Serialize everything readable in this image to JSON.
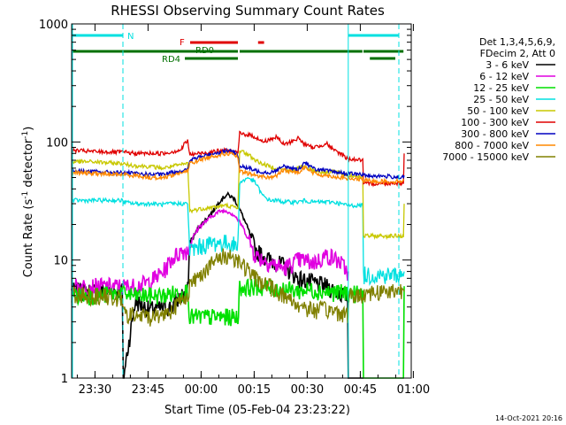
{
  "chart_data": {
    "type": "line",
    "title": "RHESSI Observing Summary Count Rates",
    "xlabel": "Start Time (05-Feb-04 23:23:22)",
    "ylabel_main": "Count Rate (s",
    "ylabel_sup1": "-1",
    "ylabel_mid": " detector",
    "ylabel_sup2": "-1",
    "ylabel_end": ")",
    "yscale": "log",
    "ylim": [
      1,
      1000
    ],
    "xlim": [
      0,
      96
    ],
    "x_units": "minutes after 23:23:22",
    "x_ticks": [
      {
        "t": 6.6,
        "label": "23:30"
      },
      {
        "t": 21.6,
        "label": "23:45"
      },
      {
        "t": 36.6,
        "label": "00:00"
      },
      {
        "t": 51.6,
        "label": "00:15"
      },
      {
        "t": 66.6,
        "label": "00:30"
      },
      {
        "t": 81.6,
        "label": "00:45"
      },
      {
        "t": 96.6,
        "label": "01:00"
      }
    ],
    "y_ticks": [
      {
        "v": 1,
        "label": "1"
      },
      {
        "v": 10,
        "label": "10"
      },
      {
        "v": 100,
        "label": "100"
      },
      {
        "v": 1000,
        "label": "1000"
      }
    ],
    "legend_header": [
      "Det 1,3,4,5,6,9,",
      "FDecim 2, Att 0"
    ],
    "timestamp": "14-Oct-2021 20:16",
    "bars": [
      {
        "label": "N",
        "color": "#00e0e0",
        "y": 40,
        "segments": [
          [
            0,
            14.5
          ],
          [
            78.2,
            92.5
          ]
        ]
      },
      {
        "label": "F",
        "color": "#e00000",
        "y": 48,
        "segments": [
          [
            33.5,
            47.0
          ],
          [
            52.7,
            54.4
          ]
        ]
      },
      {
        "label": "RD0",
        "color": "#007000",
        "y": 58,
        "segments": [
          [
            0,
            47.0
          ],
          [
            47.5,
            82.2
          ],
          [
            82.5,
            93.8
          ]
        ]
      },
      {
        "label": "RD4",
        "color": "#007000",
        "y": 66,
        "segments": [
          [
            32.0,
            47.0
          ],
          [
            84.3,
            91.5
          ]
        ]
      }
    ],
    "series": [
      {
        "name": "3 - 6 keV",
        "color": "#000000",
        "x": [
          0,
          6,
          12,
          14.3,
          14.6,
          18,
          22,
          28,
          31,
          32.8,
          33.4,
          36,
          40,
          42,
          44,
          46,
          48,
          50,
          52,
          56,
          60,
          64,
          68,
          72,
          76,
          78,
          78.2,
          78.5,
          82.3,
          82.5
        ],
        "y": [
          5.5,
          5.4,
          5.5,
          5.5,
          1,
          4.5,
          3.8,
          4,
          5,
          5.5,
          14,
          19,
          26,
          32,
          36,
          33,
          25,
          18,
          12,
          10,
          9,
          7,
          6.5,
          6,
          5.2,
          5,
          1,
          1,
          1,
          1
        ]
      },
      {
        "name": "6 - 12 keV",
        "color": "#e000e0",
        "x": [
          0,
          6,
          12,
          14.3,
          14.6,
          18,
          22,
          26,
          28,
          31,
          32.8,
          33.4,
          36,
          40,
          42,
          44,
          46,
          48,
          50,
          52,
          56,
          60,
          64,
          66,
          68,
          70,
          72,
          74,
          76,
          78,
          78.2
        ],
        "y": [
          6,
          6,
          6,
          6,
          6,
          6,
          6.5,
          8,
          10,
          12,
          12,
          14,
          19,
          24,
          26,
          26,
          24,
          20,
          15,
          11,
          9.5,
          8.5,
          10,
          10,
          9.5,
          10,
          11,
          10.5,
          9.5,
          8,
          8
        ]
      },
      {
        "name": "12 - 25 keV",
        "color": "#00e000",
        "x": [
          0,
          6,
          12,
          14.3,
          14.6,
          18,
          22,
          26,
          28,
          31,
          32.8,
          33.4,
          47,
          47.5,
          52,
          56,
          60,
          64,
          68,
          72,
          76,
          78,
          78.5,
          82.3,
          82.5,
          92,
          93.8,
          94
        ],
        "y": [
          5,
          5,
          5.2,
          5.3,
          5.2,
          5,
          5,
          5,
          5.2,
          5.3,
          5.5,
          3.3,
          3.3,
          5.8,
          6,
          5.8,
          5.7,
          5.5,
          5.6,
          5.4,
          5.3,
          5.3,
          5.2,
          5.2,
          1,
          1,
          1,
          6
        ]
      },
      {
        "name": "25 - 50 keV",
        "color": "#00e0e0",
        "x": [
          0,
          6,
          12,
          14.3,
          14.6,
          18,
          22,
          26,
          28,
          31,
          32.8,
          33.4,
          36,
          40,
          44,
          46,
          47,
          47.5,
          50,
          52,
          54,
          56,
          58,
          60,
          62,
          64,
          66,
          68,
          70,
          72,
          74,
          76,
          78,
          78.2,
          82.3,
          82.5,
          90,
          93.8,
          94
        ],
        "y": [
          32,
          32,
          32,
          32,
          31,
          30,
          30,
          29.5,
          30,
          30,
          30,
          12,
          13,
          14,
          14,
          13.5,
          13,
          45,
          50,
          45,
          35,
          32,
          32,
          31,
          31,
          31,
          32,
          31,
          31,
          31,
          31,
          30,
          29,
          29,
          29,
          7.5,
          7.5,
          7.5,
          8
        ]
      },
      {
        "name": "50 - 100 keV",
        "color": "#c8c800",
        "x": [
          0,
          6,
          12,
          14.3,
          14.6,
          18,
          22,
          26,
          28,
          31,
          32.8,
          33.4,
          36,
          40,
          44,
          46,
          47,
          47.5,
          50,
          52,
          54,
          56,
          58,
          60,
          62,
          64,
          66,
          68,
          70,
          72,
          74,
          76,
          78,
          78.2,
          82.3,
          82.5,
          90,
          93.8,
          94
        ],
        "y": [
          68,
          68,
          66,
          66,
          65,
          63,
          62,
          60,
          62,
          64,
          66,
          26,
          27,
          28,
          29,
          28,
          27,
          85,
          78,
          70,
          65,
          62,
          60,
          58,
          56,
          60,
          62,
          58,
          56,
          55,
          57,
          54,
          52,
          52,
          51,
          16,
          16,
          16,
          30
        ]
      },
      {
        "name": "100 - 300 keV",
        "color": "#e00000",
        "x": [
          0,
          6,
          12,
          14.3,
          14.6,
          18,
          22,
          26,
          28,
          31,
          32,
          32.8,
          33.4,
          36,
          40,
          44,
          46,
          47,
          47.5,
          50,
          52,
          54,
          56,
          58,
          60,
          62,
          64,
          66,
          68,
          70,
          72,
          74,
          76,
          78,
          78.2,
          82.3,
          82.5,
          90,
          93.8,
          94
        ],
        "y": [
          85,
          83,
          82,
          82,
          82,
          80,
          80,
          80,
          82,
          86,
          98,
          102,
          78,
          80,
          83,
          85,
          82,
          80,
          118,
          115,
          110,
          100,
          105,
          110,
          95,
          100,
          108,
          95,
          90,
          92,
          98,
          85,
          80,
          72,
          72,
          70,
          44,
          45,
          45,
          80
        ]
      },
      {
        "name": "300 - 800 keV",
        "color": "#0000c0",
        "x": [
          0,
          6,
          12,
          14.3,
          14.6,
          18,
          22,
          26,
          28,
          31,
          32.8,
          33.4,
          36,
          40,
          44,
          46,
          47,
          47.5,
          50,
          52,
          54,
          56,
          58,
          60,
          62,
          64,
          66,
          68,
          70,
          72,
          74,
          76,
          78,
          78.2,
          82.3,
          82.5,
          90,
          93.8,
          94
        ],
        "y": [
          57,
          56,
          55,
          55,
          55,
          54,
          53,
          53,
          55,
          57,
          58,
          70,
          74,
          80,
          84,
          82,
          78,
          62,
          60,
          57,
          56,
          55,
          58,
          62,
          60,
          58,
          68,
          60,
          58,
          57,
          56,
          55,
          54,
          54,
          53,
          52,
          51,
          50,
          52
        ]
      },
      {
        "name": "800 - 7000 keV",
        "color": "#ff8800",
        "x": [
          0,
          6,
          12,
          14.3,
          14.6,
          18,
          22,
          26,
          28,
          31,
          32.8,
          33.4,
          36,
          40,
          44,
          46,
          47,
          47.5,
          50,
          52,
          54,
          56,
          58,
          60,
          62,
          64,
          66,
          68,
          70,
          72,
          74,
          76,
          78,
          78.2,
          82.3,
          82.5,
          90,
          93.8,
          94
        ],
        "y": [
          55,
          54,
          53,
          53,
          53,
          52,
          50,
          50,
          52,
          55,
          56,
          66,
          70,
          76,
          80,
          78,
          74,
          56,
          54,
          52,
          51,
          50,
          52,
          58,
          56,
          55,
          62,
          55,
          53,
          52,
          51,
          50,
          49,
          49,
          48,
          47,
          46,
          47,
          48
        ]
      },
      {
        "name": "7000 - 15000 keV",
        "color": "#808000",
        "x": [
          0,
          6,
          12,
          14.3,
          14.6,
          18,
          22,
          26,
          28,
          31,
          32.8,
          33.4,
          36,
          40,
          42,
          44,
          46,
          48,
          50,
          52,
          54,
          56,
          58,
          60,
          64,
          68,
          72,
          76,
          78,
          78.5,
          82.3,
          82.5,
          90,
          93.8,
          94
        ],
        "y": [
          5.2,
          5,
          4.8,
          4.6,
          3.5,
          3.4,
          3.3,
          3.5,
          3.8,
          4.5,
          5.2,
          6,
          7.5,
          9.5,
          10.5,
          11,
          10.5,
          9.5,
          8,
          7,
          6.5,
          6,
          5.5,
          5,
          4.2,
          3.8,
          3.8,
          3.6,
          3.5,
          5,
          5,
          5.3,
          5.5,
          5.6,
          5.4
        ]
      }
    ]
  }
}
